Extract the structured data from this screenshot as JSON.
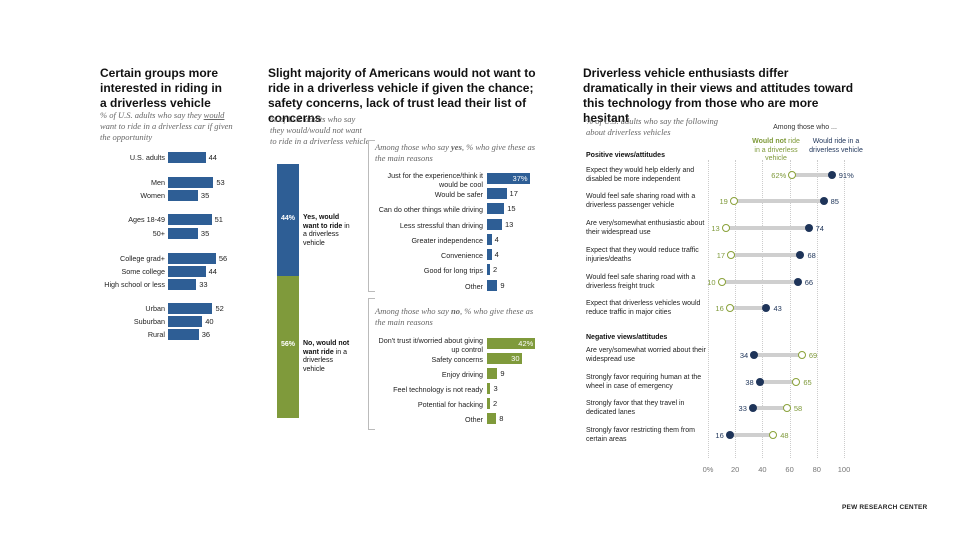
{
  "footer": "PEW RESEARCH CENTER",
  "left": {
    "title": "Certain groups more interested in riding in a driverless vehicle",
    "subtitle_pre": "% of U.S. adults who say they ",
    "subtitle_u": "would",
    "subtitle_post": " want to ride in a driverless car if given the opportunity",
    "rows": [
      {
        "label": "U.S. adults",
        "value": 44
      },
      {
        "label": "Men",
        "value": 53
      },
      {
        "label": "Women",
        "value": 35
      },
      {
        "label": "Ages 18-49",
        "value": 51
      },
      {
        "label": "50+",
        "value": 35
      },
      {
        "label": "College grad+",
        "value": 56
      },
      {
        "label": "Some college",
        "value": 44
      },
      {
        "label": "High school or less",
        "value": 33
      },
      {
        "label": "Urban",
        "value": 52
      },
      {
        "label": "Suburban",
        "value": 40
      },
      {
        "label": "Rural",
        "value": 36
      }
    ]
  },
  "middle": {
    "title": "Slight majority of Americans would not want to ride in a driverless vehicle if given the chance; safety concerns, lack of trust lead their list of concerns",
    "subtitle": "% of U.S. adults who say they would/would not want to ride in a driverless vehicle",
    "yes_pct": "44%",
    "yes_bold": "Yes, would want to ride",
    "yes_rest": " in a driverless vehicle",
    "no_pct": "56%",
    "no_bold": "No, would not want ride",
    "no_rest": " in a driverless vehicle",
    "yes_sub_pre": "Among those who say ",
    "yes_sub_bold": "yes",
    "yes_sub_post": ", % who give these as the main reasons",
    "no_sub_pre": "Among those who say ",
    "no_sub_bold": "no",
    "no_sub_post": ", % who give these as the main reasons",
    "yes_reasons": [
      {
        "label": "Just for the experience/think it would be cool",
        "value": 37,
        "display": "37%"
      },
      {
        "label": "Would be safer",
        "value": 17,
        "display": "17"
      },
      {
        "label": "Can do other things while driving",
        "value": 15,
        "display": "15"
      },
      {
        "label": "Less stressful than driving",
        "value": 13,
        "display": "13"
      },
      {
        "label": "Greater independence",
        "value": 4,
        "display": "4"
      },
      {
        "label": "Convenience",
        "value": 4,
        "display": "4"
      },
      {
        "label": "Good for long trips",
        "value": 2,
        "display": "2"
      },
      {
        "label": "Other",
        "value": 9,
        "display": "9"
      }
    ],
    "no_reasons": [
      {
        "label": "Don't trust it/worried about giving up control",
        "value": 42,
        "display": "42%"
      },
      {
        "label": "Safety concerns",
        "value": 30,
        "display": "30"
      },
      {
        "label": "Enjoy driving",
        "value": 9,
        "display": "9"
      },
      {
        "label": "Feel technology is not ready",
        "value": 3,
        "display": "3"
      },
      {
        "label": "Potential for hacking",
        "value": 2,
        "display": "2"
      },
      {
        "label": "Other",
        "value": 8,
        "display": "8"
      }
    ]
  },
  "right": {
    "title": "Driverless vehicle enthusiasts differ dramatically in their views and attitudes toward this technology from those who are more hesitant",
    "subtitle": "% of U.S. adults who say the following about driverless vehicles",
    "among": "Among those who ...",
    "col_not_pre": "Would ",
    "col_not_bold": "not",
    "col_not_post": " ride in a driverless vehicle",
    "col_would": "Would ride in a driverless vehicle",
    "positive_head": "Positive views/attitudes",
    "negative_head": "Negative views/attitudes",
    "positive": [
      {
        "label": "Expect they would help elderly and disabled be more independent",
        "not": 62,
        "would": 91,
        "not_disp": "62%",
        "would_disp": "91%"
      },
      {
        "label": "Would feel safe sharing road with a driverless passenger vehicle",
        "not": 19,
        "would": 85,
        "not_disp": "19",
        "would_disp": "85"
      },
      {
        "label": "Are very/somewhat enthusiastic about their widespread use",
        "not": 13,
        "would": 74,
        "not_disp": "13",
        "would_disp": "74"
      },
      {
        "label": "Expect that they would reduce traffic injuries/deaths",
        "not": 17,
        "would": 68,
        "not_disp": "17",
        "would_disp": "68"
      },
      {
        "label": "Would feel safe sharing road with a driverless freight truck",
        "not": 10,
        "would": 66,
        "not_disp": "10",
        "would_disp": "66"
      },
      {
        "label": "Expect that driverless vehicles would reduce traffic in major cities",
        "not": 16,
        "would": 43,
        "not_disp": "16",
        "would_disp": "43"
      }
    ],
    "negative": [
      {
        "label": "Are very/somewhat worried about their widespread use",
        "not": 69,
        "would": 34,
        "not_disp": "69",
        "would_disp": "34"
      },
      {
        "label": "Strongly favor requiring human at the wheel in case of emergency",
        "not": 65,
        "would": 38,
        "not_disp": "65",
        "would_disp": "38"
      },
      {
        "label": "Strongly favor that they travel in dedicated lanes",
        "not": 58,
        "would": 33,
        "not_disp": "58",
        "would_disp": "33"
      },
      {
        "label": "Strongly favor restricting them from certain areas",
        "not": 48,
        "would": 16,
        "not_disp": "48",
        "would_disp": "16"
      }
    ],
    "axis_ticks": [
      "0%",
      "20",
      "40",
      "60",
      "80",
      "100"
    ]
  },
  "colors": {
    "blue": "#2e5e95",
    "green": "#7f9a3b",
    "navy": "#1e3459"
  },
  "chart_data": [
    {
      "type": "bar",
      "title": "Certain groups more interested in riding in a driverless vehicle",
      "categories": [
        "U.S. adults",
        "Men",
        "Women",
        "Ages 18-49",
        "50+",
        "College grad+",
        "Some college",
        "High school or less",
        "Urban",
        "Suburban",
        "Rural"
      ],
      "values": [
        44,
        53,
        35,
        51,
        35,
        56,
        44,
        33,
        52,
        40,
        36
      ]
    },
    {
      "type": "bar",
      "title": "Slight majority of Americans would not want to ride in a driverless vehicle if given the chance; safety concerns, lack of trust lead their list of concerns",
      "categories": [
        "Yes",
        "No"
      ],
      "values": [
        44,
        56
      ]
    },
    {
      "type": "bar",
      "categories": [
        "Just for the experience/think it would be cool",
        "Would be safer",
        "Can do other things while driving",
        "Less stressful than driving",
        "Greater independence",
        "Convenience",
        "Good for long trips",
        "Other"
      ],
      "values": [
        37,
        17,
        15,
        13,
        4,
        4,
        2,
        9
      ]
    },
    {
      "type": "bar",
      "categories": [
        "Don't trust it/worried about giving up control",
        "Safety concerns",
        "Enjoy driving",
        "Feel technology is not ready",
        "Potential for hacking",
        "Other"
      ],
      "values": [
        42,
        30,
        9,
        3,
        2,
        8
      ]
    },
    {
      "type": "scatter",
      "title": "Driverless vehicle enthusiasts differ dramatically in their views and attitudes toward this technology from those who are more hesitant",
      "categories": [
        "Expect they would help elderly and disabled be more independent",
        "Would feel safe sharing road with a driverless passenger vehicle",
        "Are very/somewhat enthusiastic about their widespread use",
        "Expect that they would reduce traffic injuries/deaths",
        "Would feel safe sharing road with a driverless freight truck",
        "Expect that driverless vehicles would reduce traffic in major cities",
        "Are very/somewhat worried about their widespread use",
        "Strongly favor requiring human at the wheel in case of emergency",
        "Strongly favor that they travel in dedicated lanes",
        "Strongly favor restricting them from certain areas"
      ],
      "series": [
        {
          "name": "Would not ride in a driverless vehicle",
          "values": [
            62,
            19,
            13,
            17,
            10,
            16,
            69,
            65,
            58,
            48
          ]
        },
        {
          "name": "Would ride in a driverless vehicle",
          "values": [
            91,
            85,
            74,
            68,
            66,
            43,
            34,
            38,
            33,
            16
          ]
        }
      ],
      "xlim": [
        0,
        100
      ]
    }
  ]
}
